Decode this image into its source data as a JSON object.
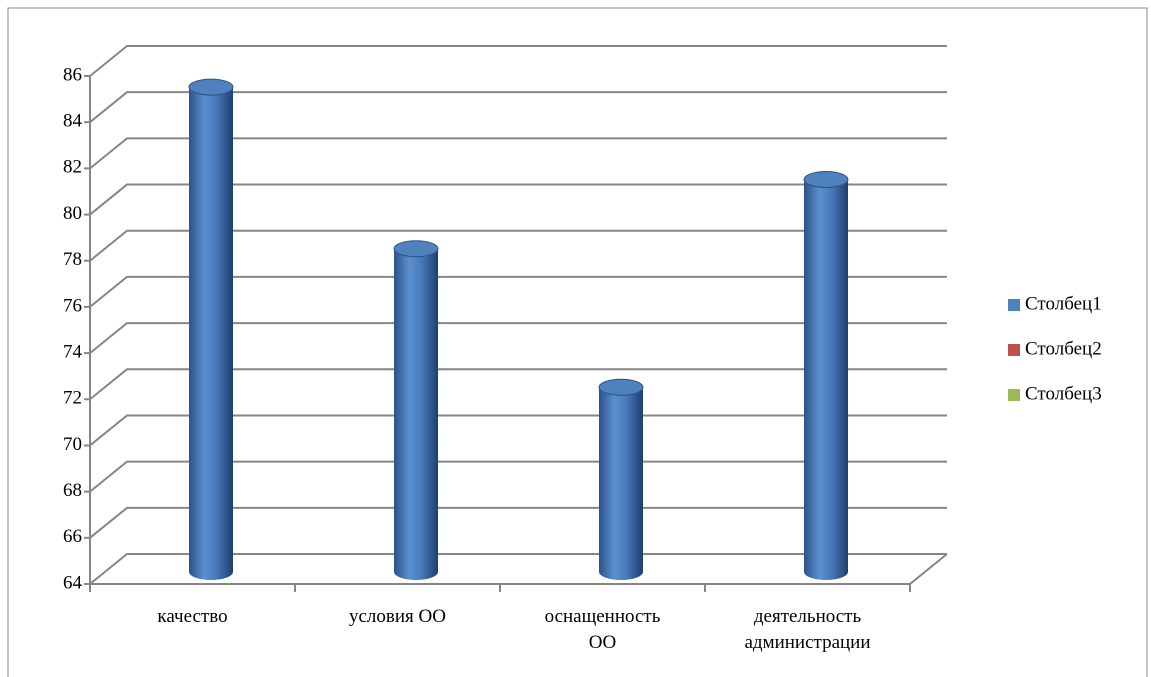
{
  "chart_data": {
    "type": "bar3d",
    "categories": [
      "качество",
      "условия ОО",
      "оснащенность ОО",
      "деятельность администрации"
    ],
    "series": [
      {
        "name": "Столбец1",
        "color": "#4f81bd",
        "values": [
          85,
          78,
          72,
          81
        ]
      },
      {
        "name": "Столбец2",
        "color": "#c0504d",
        "values": [
          null,
          null,
          null,
          null
        ]
      },
      {
        "name": "Столбец3",
        "color": "#9bbb59",
        "values": [
          null,
          null,
          null,
          null
        ]
      }
    ],
    "ylim": [
      64,
      86
    ],
    "yticks": [
      64,
      66,
      68,
      70,
      72,
      74,
      76,
      78,
      80,
      82,
      84,
      86
    ],
    "grid": true,
    "legend": "right"
  }
}
